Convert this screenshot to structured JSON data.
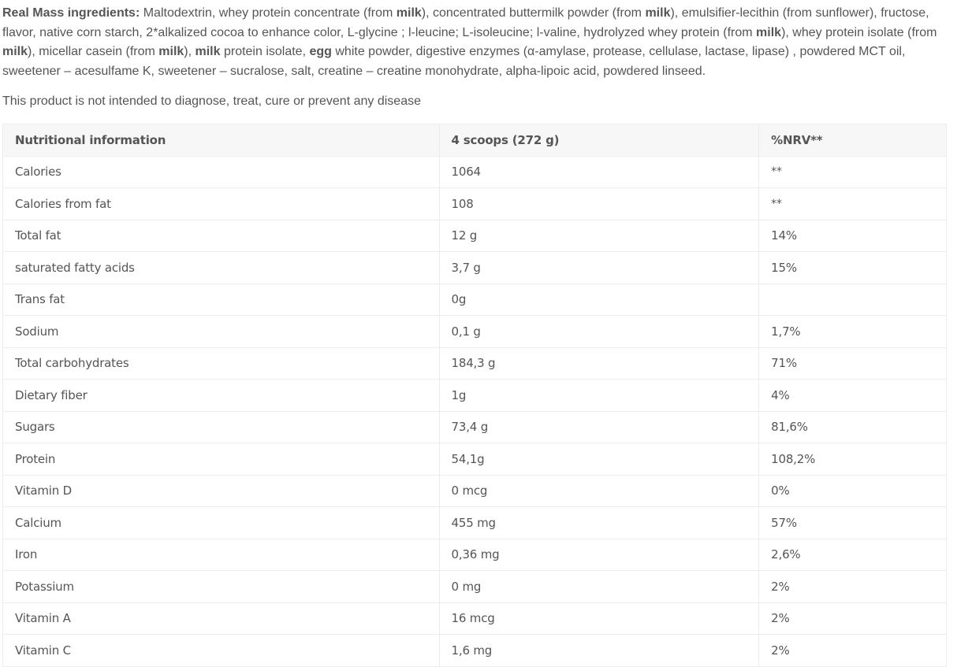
{
  "ingredients": [
    {
      "text": "Real Mass ingredients:",
      "bold": true
    },
    {
      "text": " Maltodextrin, whey protein concentrate (from ",
      "bold": false
    },
    {
      "text": "milk",
      "bold": true
    },
    {
      "text": "), concentrated buttermilk powder (from ",
      "bold": false
    },
    {
      "text": "milk",
      "bold": true
    },
    {
      "text": "), emulsifier-lecithin (from sunflower), fructose, flavor, native corn starch, 2*alkalized cocoa to enhance color, L-glycine ; l-leucine; L-isoleucine; l-valine, hydrolyzed whey protein (from ",
      "bold": false
    },
    {
      "text": "milk",
      "bold": true
    },
    {
      "text": "), whey protein isolate (from ",
      "bold": false
    },
    {
      "text": "milk",
      "bold": true
    },
    {
      "text": "), micellar casein (from ",
      "bold": false
    },
    {
      "text": "milk",
      "bold": true
    },
    {
      "text": "), ",
      "bold": false
    },
    {
      "text": "milk",
      "bold": true
    },
    {
      "text": " protein isolate, ",
      "bold": false
    },
    {
      "text": "egg",
      "bold": true
    },
    {
      "text": " white powder, digestive enzymes (α-amylase, protease, cellulase, lactase, lipase) , powdered MCT oil, sweetener – acesulfame K, sweetener – sucralose, salt, creatine – creatine monohydrate, alpha-lipoic acid, powdered linseed.",
      "bold": false
    }
  ],
  "disclaimer": "This product is not intended to diagnose, treat, cure or prevent any disease",
  "table": {
    "headers": [
      "Nutritional information",
      "4 scoops (272 g)",
      "%NRV**"
    ],
    "rows": [
      [
        "Calories",
        "1064",
        "**"
      ],
      [
        "Calories from fat",
        "108",
        "**"
      ],
      [
        "Total fat",
        "12 g",
        "14%"
      ],
      [
        "saturated fatty acids",
        "3,7 g",
        "15%"
      ],
      [
        "Trans fat",
        "0g",
        ""
      ],
      [
        "Sodium",
        "0,1 g",
        "1,7%"
      ],
      [
        "Total carbohydrates",
        "184,3 g",
        "71%"
      ],
      [
        "Dietary fiber",
        "1g",
        "4%"
      ],
      [
        "Sugars",
        "73,4 g",
        "81,6%"
      ],
      [
        "Protein",
        "54,1g",
        "108,2%"
      ],
      [
        "Vitamin D",
        "0 mcg",
        "0%"
      ],
      [
        "Calcium",
        "455 mg",
        "57%"
      ],
      [
        "Iron",
        "0,36 mg",
        "2,6%"
      ],
      [
        "Potassium",
        "0 mg",
        "2%"
      ],
      [
        "Vitamin A",
        "16 mcg",
        "2%"
      ],
      [
        "Vitamin C",
        "1,6 mg",
        "2%"
      ]
    ]
  }
}
